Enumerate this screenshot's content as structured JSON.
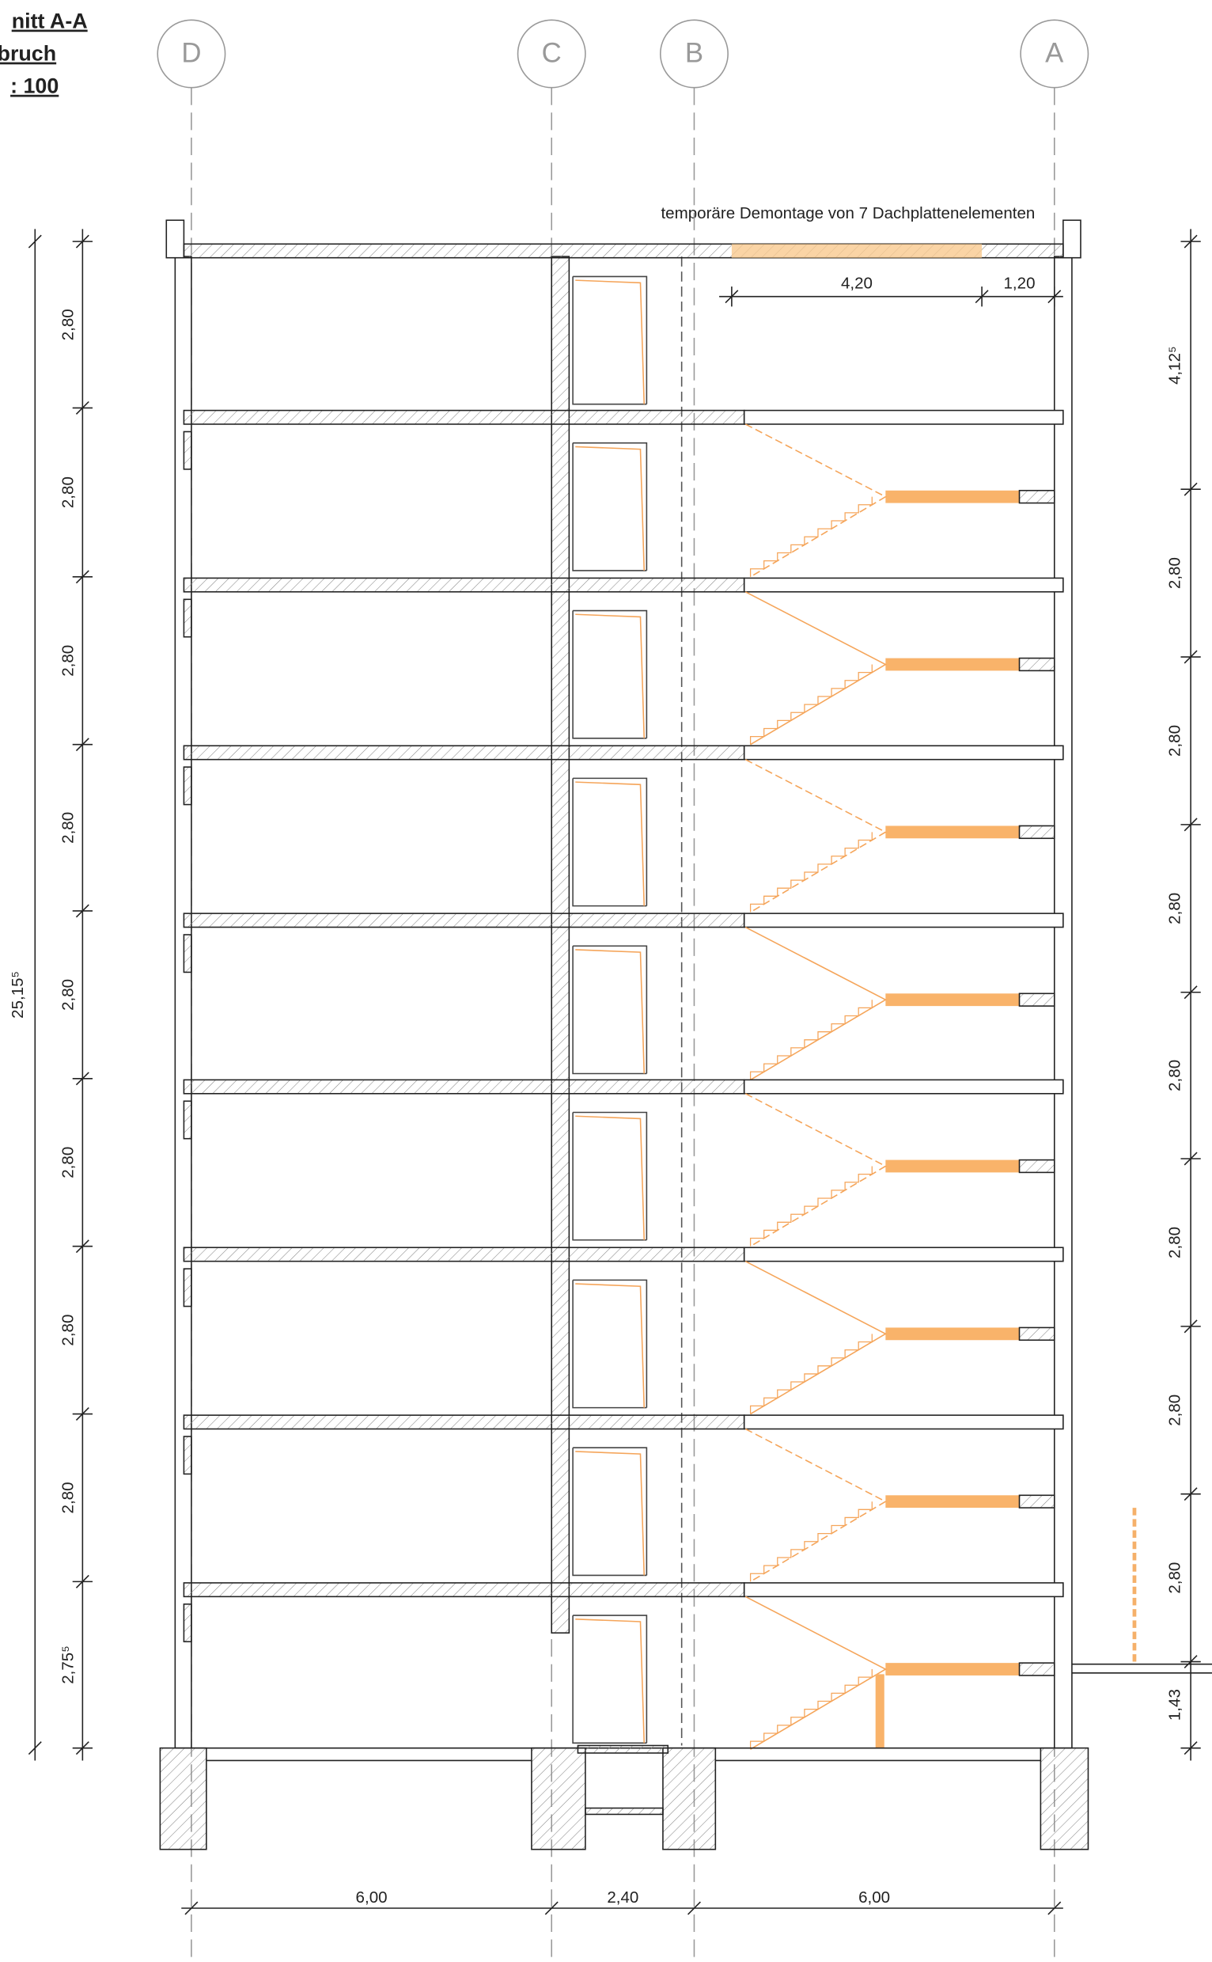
{
  "header": {
    "title": "nitt A-A",
    "subtitle": "bruch",
    "scale": ": 100"
  },
  "axes": [
    "D",
    "C",
    "B",
    "A"
  ],
  "annotation": "temporäre Demontage von 7 Dachplattenelementen",
  "dimensions": {
    "top": [
      "4,20",
      "1,20"
    ],
    "left": [
      "2,80",
      "2,80",
      "2,80",
      "2,80",
      "2,80",
      "2,80",
      "2,80",
      "2,80",
      "2,75⁵"
    ],
    "left_total": "25,15⁵",
    "right": [
      "4,12⁵",
      "2,80",
      "2,80",
      "2,80",
      "2,80",
      "2,80",
      "2,80",
      "2,80",
      "1,43"
    ],
    "bottom": [
      "6,00",
      "2,40",
      "6,00"
    ]
  }
}
